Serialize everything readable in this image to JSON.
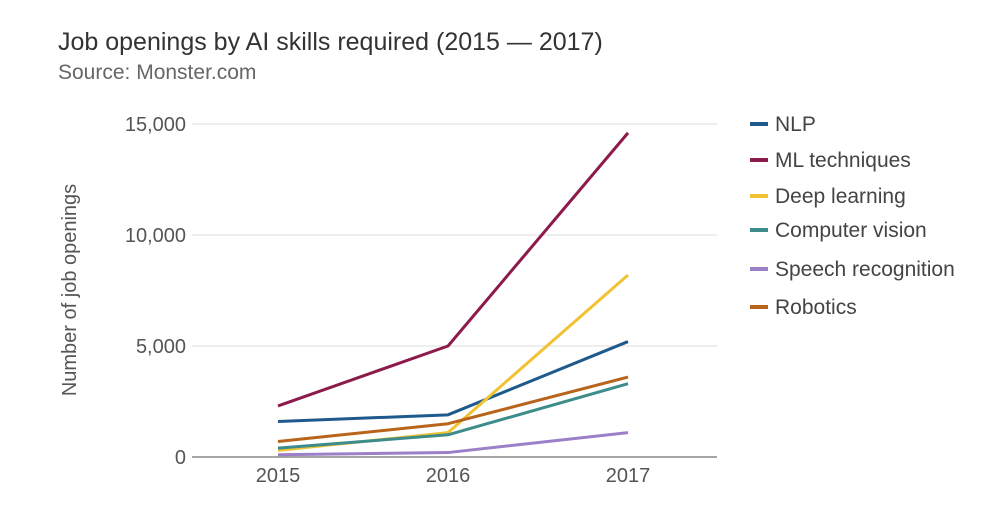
{
  "chart_data": {
    "type": "line",
    "title": "Job openings by AI skills required (2015 — 2017)",
    "subtitle": "Source: Monster.com",
    "xlabel": "",
    "ylabel": "Number of job openings",
    "x": [
      "2015",
      "2016",
      "2017"
    ],
    "y_ticks": [
      0,
      5000,
      10000,
      15000
    ],
    "y_tick_labels": [
      "0",
      "5,000",
      "10,000",
      "15,000"
    ],
    "ylim": [
      0,
      15000
    ],
    "grid": true,
    "legend_position": "right",
    "series": [
      {
        "name": "NLP",
        "color": "#1f5a8c",
        "values": [
          1600,
          1900,
          5200
        ]
      },
      {
        "name": "ML techniques",
        "color": "#8c1a4a",
        "values": [
          2300,
          5000,
          14600
        ]
      },
      {
        "name": "Deep learning",
        "color": "#f1c232",
        "values": [
          300,
          1100,
          8200
        ]
      },
      {
        "name": "Computer vision",
        "color": "#3d8c8c",
        "values": [
          400,
          1000,
          3300
        ]
      },
      {
        "name": "Speech recognition",
        "color": "#9b7fc7",
        "values": [
          100,
          200,
          1100
        ]
      },
      {
        "name": "Robotics",
        "color": "#b8651b",
        "values": [
          700,
          1500,
          3600
        ]
      }
    ]
  }
}
